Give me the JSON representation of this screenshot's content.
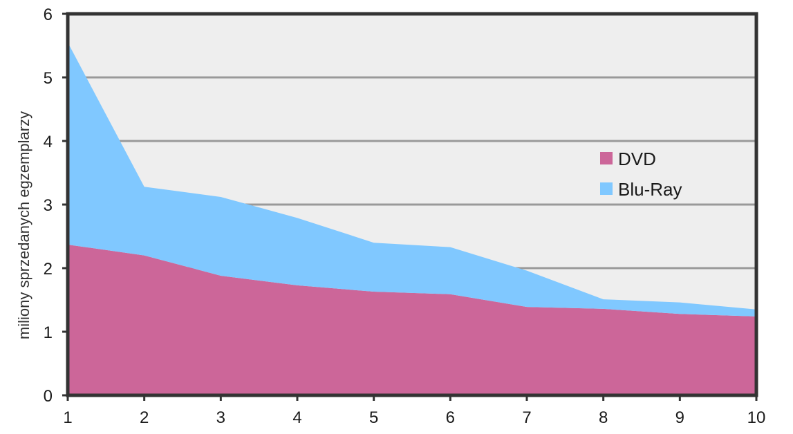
{
  "chart_data": {
    "type": "area",
    "stacked": true,
    "x": [
      1,
      2,
      3,
      4,
      5,
      6,
      7,
      8,
      9,
      10
    ],
    "x_tick_labels": [
      "1",
      "2",
      "3",
      "4",
      "5",
      "6",
      "7",
      "8",
      "9",
      "10"
    ],
    "y_tick_labels": [
      "0",
      "1",
      "2",
      "3",
      "4",
      "5",
      "6"
    ],
    "ylim": [
      0,
      6
    ],
    "xlim": [
      1,
      10
    ],
    "ylabel": "miliony sprzedanych egzemplarzy",
    "xlabel": "",
    "grid": true,
    "legend_position": "right",
    "series": [
      {
        "name": "DVD",
        "color": "#cc6699",
        "values": [
          2.37,
          2.2,
          1.88,
          1.73,
          1.63,
          1.59,
          1.39,
          1.36,
          1.28,
          1.24
        ]
      },
      {
        "name": "Blu-Ray",
        "color": "#80c8ff",
        "values": [
          3.18,
          1.08,
          1.24,
          1.06,
          0.77,
          0.74,
          0.57,
          0.15,
          0.18,
          0.11
        ]
      }
    ],
    "plot_background": "#eeeeee",
    "grid_color": "#999999",
    "frame_color": "#333333"
  }
}
